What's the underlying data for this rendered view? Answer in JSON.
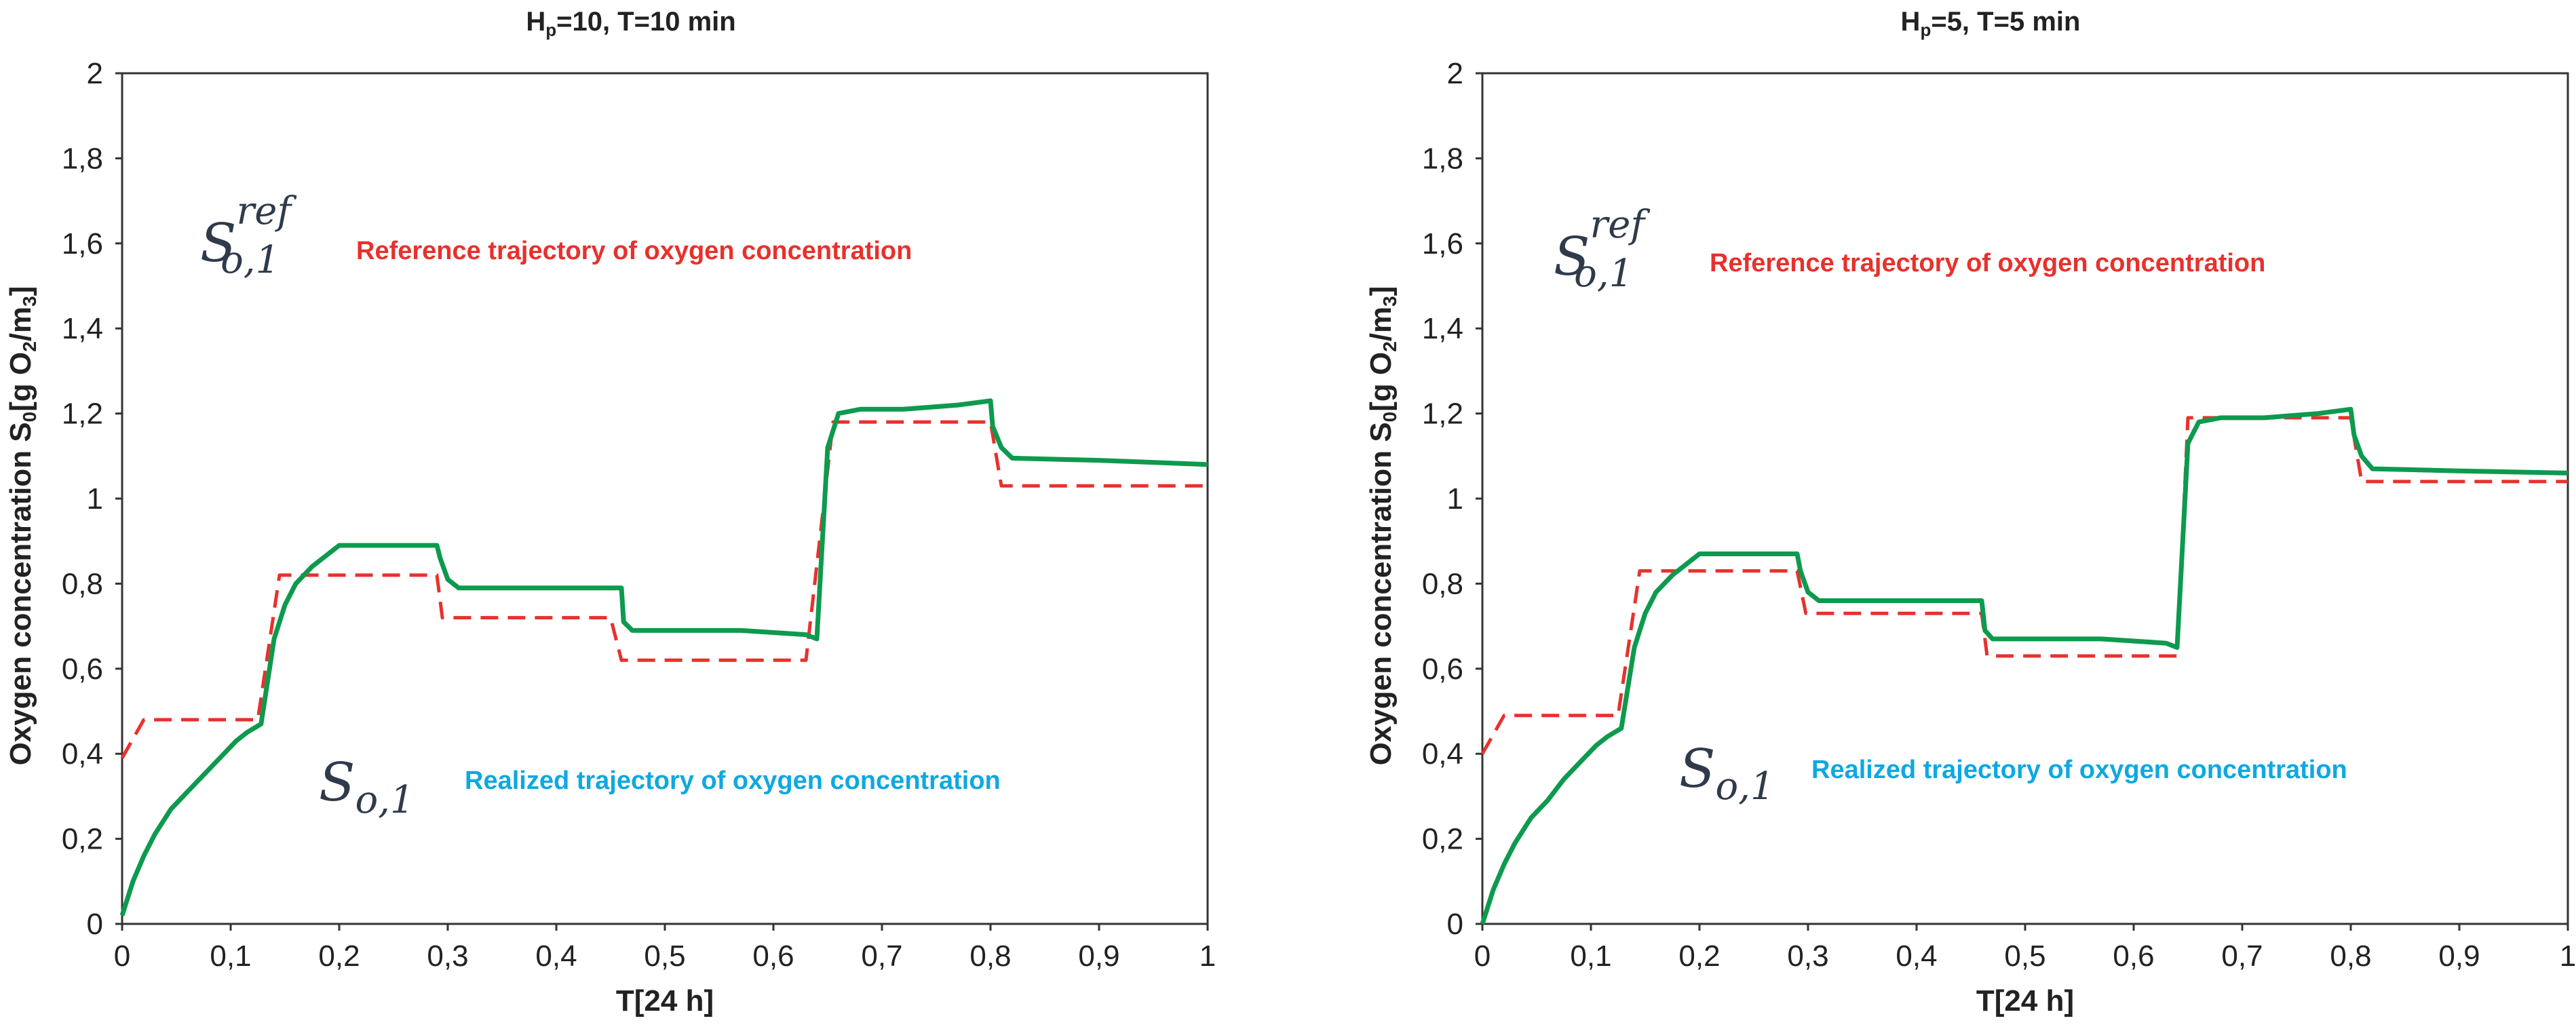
{
  "colors": {
    "reference": "#e8312c",
    "realized": "#0d9a4e",
    "reference_label": "#e8312c",
    "realized_label": "#0fa8e0",
    "axis": "#333333"
  },
  "chart_data": [
    {
      "type": "line",
      "title_main": "H",
      "title_sub": "p",
      "title_rest": "=10, T=10 min",
      "xlabel": "T[24 h]",
      "ylabel_main": "Oxygen concentration S",
      "ylabel_sub1": "0",
      "ylabel_mid": "[g O",
      "ylabel_sub2": "2",
      "ylabel_mid2": "/m",
      "ylabel_sub3": "3",
      "ylabel_end": "]",
      "xlim": [
        0,
        1
      ],
      "ylim": [
        0,
        2
      ],
      "x_ticks": [
        "0",
        "0,1",
        "0,2",
        "0,3",
        "0,4",
        "0,5",
        "0,6",
        "0,7",
        "0,8",
        "0,9",
        "1"
      ],
      "y_ticks": [
        "0",
        "0,2",
        "0,4",
        "0,6",
        "0,8",
        "1",
        "1,2",
        "1,4",
        "1,6",
        "1,8",
        "2"
      ],
      "ref_symbol": {
        "base": "S",
        "sub": "o,1",
        "sup": "ref"
      },
      "real_symbol": {
        "base": "S",
        "sub": "o,1"
      },
      "ref_label": "Reference trajectory of oxygen concentration",
      "real_label": "Realized trajectory of oxygen concentration",
      "series": [
        {
          "name": "Reference trajectory",
          "style": "dashed",
          "x": [
            0,
            0.02,
            0.02,
            0.125,
            0.145,
            0.29,
            0.295,
            0.45,
            0.46,
            0.63,
            0.655,
            0.8,
            0.81,
            1.0
          ],
          "y": [
            0.39,
            0.48,
            0.48,
            0.48,
            0.82,
            0.82,
            0.72,
            0.72,
            0.62,
            0.62,
            1.18,
            1.18,
            1.03,
            1.03
          ]
        },
        {
          "name": "Realized trajectory",
          "style": "solid",
          "x": [
            0,
            0.01,
            0.02,
            0.03,
            0.045,
            0.06,
            0.075,
            0.09,
            0.105,
            0.115,
            0.128,
            0.14,
            0.15,
            0.16,
            0.175,
            0.2,
            0.25,
            0.29,
            0.293,
            0.3,
            0.31,
            0.4,
            0.46,
            0.462,
            0.47,
            0.5,
            0.57,
            0.6,
            0.63,
            0.64,
            0.65,
            0.66,
            0.68,
            0.72,
            0.77,
            0.8,
            0.802,
            0.81,
            0.82,
            0.9,
            1.0
          ],
          "y": [
            0.02,
            0.1,
            0.16,
            0.21,
            0.27,
            0.31,
            0.35,
            0.39,
            0.43,
            0.45,
            0.47,
            0.67,
            0.75,
            0.8,
            0.84,
            0.89,
            0.89,
            0.89,
            0.86,
            0.81,
            0.79,
            0.79,
            0.79,
            0.71,
            0.69,
            0.69,
            0.69,
            0.685,
            0.68,
            0.67,
            1.12,
            1.2,
            1.21,
            1.21,
            1.22,
            1.23,
            1.17,
            1.12,
            1.095,
            1.09,
            1.08
          ]
        }
      ]
    },
    {
      "type": "line",
      "title_main": "H",
      "title_sub": "p",
      "title_rest": "=5, T=5 min",
      "xlabel": "T[24 h]",
      "ylabel_main": "Oxygen concentration S",
      "ylabel_sub1": "0",
      "ylabel_mid": "[g O",
      "ylabel_sub2": "2",
      "ylabel_mid2": "/m",
      "ylabel_sub3": "3",
      "ylabel_end": "]",
      "xlim": [
        0,
        1
      ],
      "ylim": [
        0,
        2
      ],
      "x_ticks": [
        "0",
        "0,1",
        "0,2",
        "0,3",
        "0,4",
        "0,5",
        "0,6",
        "0,7",
        "0,8",
        "0,9",
        "1"
      ],
      "y_ticks": [
        "0",
        "0,2",
        "0,4",
        "0,6",
        "0,8",
        "1",
        "1,2",
        "1,4",
        "1,6",
        "1,8",
        "2"
      ],
      "ref_symbol": {
        "base": "S",
        "sub": "o,1",
        "sup": "ref"
      },
      "real_symbol": {
        "base": "S",
        "sub": "o,1"
      },
      "ref_label": "Reference trajectory of oxygen concentration",
      "real_label": "Realized trajectory of oxygen concentration",
      "series": [
        {
          "name": "Reference trajectory",
          "style": "dashed",
          "x": [
            0,
            0.02,
            0.02,
            0.125,
            0.145,
            0.29,
            0.298,
            0.46,
            0.465,
            0.64,
            0.65,
            0.8,
            0.81,
            1.0
          ],
          "y": [
            0.4,
            0.49,
            0.49,
            0.49,
            0.83,
            0.83,
            0.73,
            0.73,
            0.63,
            0.63,
            1.19,
            1.19,
            1.04,
            1.04
          ]
        },
        {
          "name": "Realized trajectory",
          "style": "solid",
          "x": [
            0,
            0.01,
            0.02,
            0.03,
            0.045,
            0.06,
            0.075,
            0.09,
            0.105,
            0.115,
            0.128,
            0.14,
            0.15,
            0.16,
            0.175,
            0.2,
            0.25,
            0.29,
            0.293,
            0.3,
            0.31,
            0.4,
            0.46,
            0.463,
            0.47,
            0.5,
            0.57,
            0.6,
            0.63,
            0.64,
            0.65,
            0.66,
            0.68,
            0.72,
            0.77,
            0.8,
            0.803,
            0.81,
            0.82,
            0.9,
            1.0
          ],
          "y": [
            0.0,
            0.08,
            0.14,
            0.19,
            0.25,
            0.29,
            0.34,
            0.38,
            0.42,
            0.44,
            0.46,
            0.65,
            0.73,
            0.78,
            0.82,
            0.87,
            0.87,
            0.87,
            0.83,
            0.78,
            0.76,
            0.76,
            0.76,
            0.69,
            0.67,
            0.67,
            0.67,
            0.665,
            0.66,
            0.65,
            1.13,
            1.18,
            1.19,
            1.19,
            1.2,
            1.21,
            1.15,
            1.1,
            1.07,
            1.065,
            1.06
          ]
        }
      ]
    }
  ]
}
